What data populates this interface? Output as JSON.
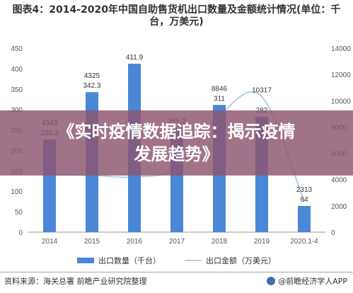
{
  "title": "图表4：2014-2020年中国自助售货机出口数量及金额统计情况(单位：千台，万美元)",
  "overlay": {
    "line1": "《实时疫情数据追踪：揭示疫情",
    "line2": "发展趋势》"
  },
  "legend": {
    "bar_label": "出口数量（千台）",
    "line_label": "出口金额（万美元）"
  },
  "footer": {
    "source": "资料来源：海关总署 前瞻产业研究院整理",
    "brand": "@前瞻经济学人APP"
  },
  "colors": {
    "bar": "#4a87d6",
    "line": "#b7cdea",
    "overlay": "#8c546e"
  },
  "chart_data": {
    "type": "bar",
    "categories": [
      "2014",
      "2015",
      "2016",
      "2017",
      "2018",
      "2019",
      "2020.1-4"
    ],
    "series": [
      {
        "name": "出口数量（千台）",
        "type": "bar",
        "axis": "left",
        "values": [
          226.3,
          342.3,
          411.9,
          255.2,
          311,
          282,
          64
        ],
        "labels": [
          "226.3",
          "342.3",
          "411.9",
          "255.2",
          "311",
          "282",
          "64"
        ]
      },
      {
        "name": "出口金额（万美元）",
        "type": "line",
        "axis": "right",
        "values": [
          4343,
          4325,
          4200,
          4900,
          8846,
          10317,
          2313
        ],
        "labels": [
          "4343",
          "4325",
          "",
          "",
          "8846",
          "10317",
          "2313"
        ]
      }
    ],
    "yleft": {
      "ylim": [
        0,
        450
      ],
      "ticks": [
        "0",
        "50",
        "100",
        "150",
        "200",
        "250",
        "300",
        "350",
        "400",
        "450"
      ]
    },
    "yright": {
      "ylim": [
        0,
        14000
      ],
      "ticks": [
        "0",
        "2000",
        "4000",
        "6000",
        "8000",
        "10000",
        "12000",
        "14000"
      ]
    },
    "legend_position": "bottom",
    "grid": false
  }
}
